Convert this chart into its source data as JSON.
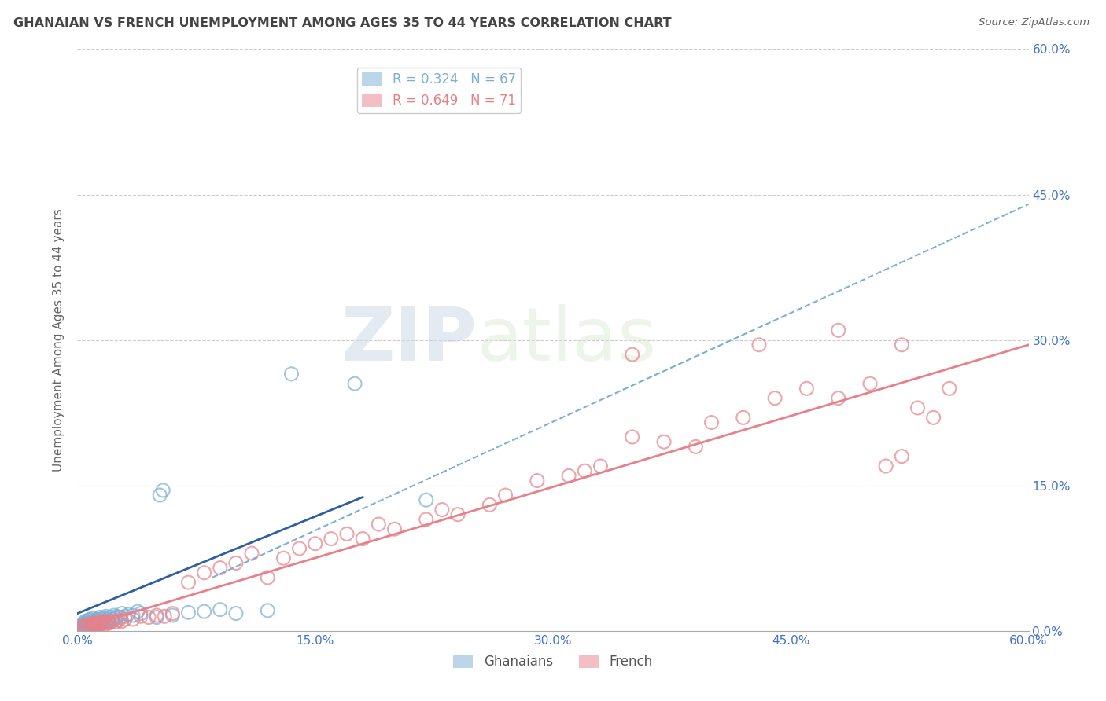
{
  "title": "GHANAIAN VS FRENCH UNEMPLOYMENT AMONG AGES 35 TO 44 YEARS CORRELATION CHART",
  "source": "Source: ZipAtlas.com",
  "ylabel": "Unemployment Among Ages 35 to 44 years",
  "watermark_zip": "ZIP",
  "watermark_atlas": "atlas",
  "xlim": [
    0.0,
    0.6
  ],
  "ylim": [
    0.0,
    0.6
  ],
  "xticks": [
    0.0,
    0.15,
    0.3,
    0.45,
    0.6
  ],
  "yticks": [
    0.0,
    0.15,
    0.3,
    0.45,
    0.6
  ],
  "ghanaian_color": "#7bafd4",
  "french_color": "#e8808a",
  "trend_blue_solid_color": "#2e5fa3",
  "trend_blue_dashed_color": "#7bafd4",
  "trend_pink_solid_color": "#e8808a",
  "background_color": "#ffffff",
  "grid_color": "#cccccc",
  "axis_label_color": "#4472c4",
  "title_color": "#444444",
  "gh_legend_label": "R = 0.324   N = 67",
  "fr_legend_label": "R = 0.649   N = 71",
  "gh_bottom_label": "Ghanaians",
  "fr_bottom_label": "French",
  "gh_solid_line": [
    [
      0.0,
      0.18
    ],
    [
      0.018,
      0.138
    ]
  ],
  "fr_solid_line": [
    [
      0.0,
      0.6
    ],
    [
      0.002,
      0.295
    ]
  ],
  "dash_line": [
    [
      0.085,
      0.6
    ],
    [
      0.055,
      0.44
    ]
  ],
  "ghanaian_x": [
    0.001,
    0.002,
    0.002,
    0.003,
    0.003,
    0.003,
    0.004,
    0.004,
    0.004,
    0.005,
    0.005,
    0.005,
    0.005,
    0.006,
    0.006,
    0.006,
    0.007,
    0.007,
    0.007,
    0.008,
    0.008,
    0.008,
    0.009,
    0.009,
    0.01,
    0.01,
    0.01,
    0.011,
    0.011,
    0.012,
    0.012,
    0.013,
    0.013,
    0.014,
    0.014,
    0.015,
    0.015,
    0.016,
    0.017,
    0.018,
    0.018,
    0.019,
    0.02,
    0.021,
    0.022,
    0.023,
    0.024,
    0.025,
    0.027,
    0.028,
    0.03,
    0.032,
    0.035,
    0.038,
    0.04,
    0.05,
    0.06,
    0.07,
    0.08,
    0.09,
    0.052,
    0.054,
    0.1,
    0.12,
    0.135,
    0.175,
    0.22
  ],
  "ghanaian_y": [
    0.002,
    0.003,
    0.005,
    0.002,
    0.004,
    0.006,
    0.003,
    0.005,
    0.008,
    0.003,
    0.005,
    0.007,
    0.01,
    0.004,
    0.006,
    0.009,
    0.004,
    0.007,
    0.011,
    0.005,
    0.008,
    0.012,
    0.006,
    0.01,
    0.005,
    0.008,
    0.013,
    0.007,
    0.011,
    0.006,
    0.01,
    0.008,
    0.012,
    0.009,
    0.014,
    0.007,
    0.012,
    0.01,
    0.013,
    0.009,
    0.015,
    0.012,
    0.01,
    0.014,
    0.012,
    0.016,
    0.013,
    0.015,
    0.014,
    0.018,
    0.015,
    0.017,
    0.016,
    0.02,
    0.018,
    0.014,
    0.016,
    0.019,
    0.02,
    0.022,
    0.14,
    0.145,
    0.018,
    0.021,
    0.265,
    0.255,
    0.135
  ],
  "french_x": [
    0.002,
    0.004,
    0.005,
    0.006,
    0.007,
    0.008,
    0.009,
    0.01,
    0.01,
    0.011,
    0.012,
    0.013,
    0.014,
    0.015,
    0.016,
    0.017,
    0.018,
    0.019,
    0.02,
    0.022,
    0.024,
    0.026,
    0.028,
    0.03,
    0.035,
    0.04,
    0.045,
    0.05,
    0.055,
    0.06,
    0.07,
    0.08,
    0.09,
    0.1,
    0.11,
    0.12,
    0.13,
    0.14,
    0.15,
    0.16,
    0.17,
    0.18,
    0.19,
    0.2,
    0.22,
    0.23,
    0.24,
    0.26,
    0.27,
    0.29,
    0.31,
    0.32,
    0.33,
    0.35,
    0.37,
    0.39,
    0.4,
    0.42,
    0.44,
    0.46,
    0.48,
    0.5,
    0.51,
    0.52,
    0.53,
    0.54,
    0.55,
    0.35,
    0.43,
    0.48,
    0.52
  ],
  "french_y": [
    0.003,
    0.005,
    0.004,
    0.006,
    0.005,
    0.007,
    0.006,
    0.005,
    0.008,
    0.007,
    0.006,
    0.008,
    0.007,
    0.009,
    0.008,
    0.01,
    0.007,
    0.009,
    0.008,
    0.01,
    0.009,
    0.011,
    0.01,
    0.012,
    0.012,
    0.015,
    0.014,
    0.016,
    0.015,
    0.018,
    0.05,
    0.06,
    0.065,
    0.07,
    0.08,
    0.055,
    0.075,
    0.085,
    0.09,
    0.095,
    0.1,
    0.095,
    0.11,
    0.105,
    0.115,
    0.125,
    0.12,
    0.13,
    0.14,
    0.155,
    0.16,
    0.165,
    0.17,
    0.2,
    0.195,
    0.19,
    0.215,
    0.22,
    0.24,
    0.25,
    0.24,
    0.255,
    0.17,
    0.18,
    0.23,
    0.22,
    0.25,
    0.285,
    0.295,
    0.31,
    0.295
  ]
}
